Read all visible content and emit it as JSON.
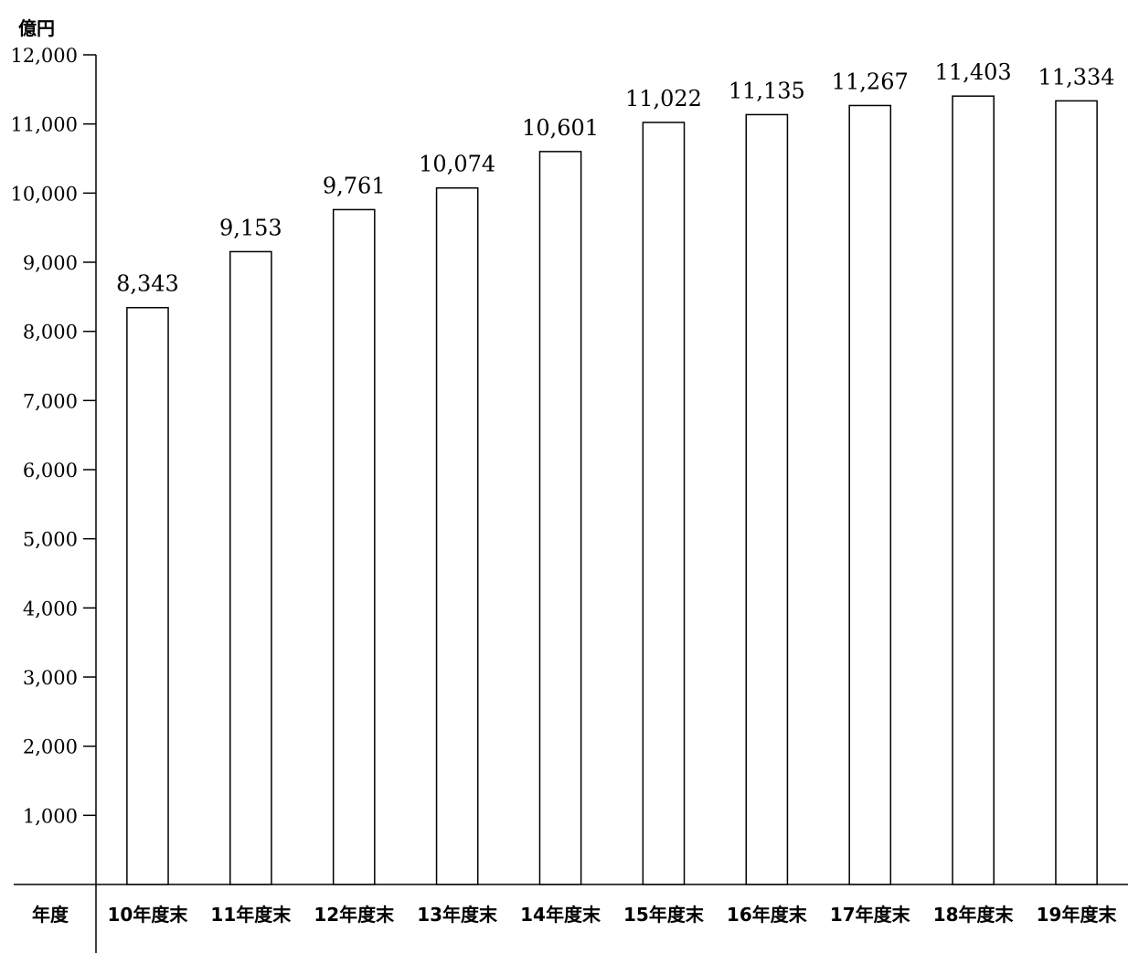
{
  "chart_data": {
    "type": "bar",
    "ylabel": "億円",
    "xlabel": "年度",
    "ylim": [
      0,
      12000
    ],
    "yticks": [
      1000,
      2000,
      3000,
      4000,
      5000,
      6000,
      7000,
      8000,
      9000,
      10000,
      11000,
      12000
    ],
    "ytick_labels": [
      "1,000",
      "2,000",
      "3,000",
      "4,000",
      "5,000",
      "6,000",
      "7,000",
      "8,000",
      "9,000",
      "10,000",
      "11,000",
      "12,000"
    ],
    "categories": [
      "10年度末",
      "11年度末",
      "12年度末",
      "13年度末",
      "14年度末",
      "15年度末",
      "16年度末",
      "17年度末",
      "18年度末",
      "19年度末"
    ],
    "values": [
      8343,
      9153,
      9761,
      10074,
      10601,
      11022,
      11135,
      11267,
      11403,
      11334
    ],
    "value_labels": [
      "8,343",
      "9,153",
      "9,761",
      "10,074",
      "10,601",
      "11,022",
      "11,135",
      "11,267",
      "11,403",
      "11,334"
    ],
    "grid": false,
    "bar_fill": "#ffffff",
    "bar_stroke": "#000000"
  }
}
